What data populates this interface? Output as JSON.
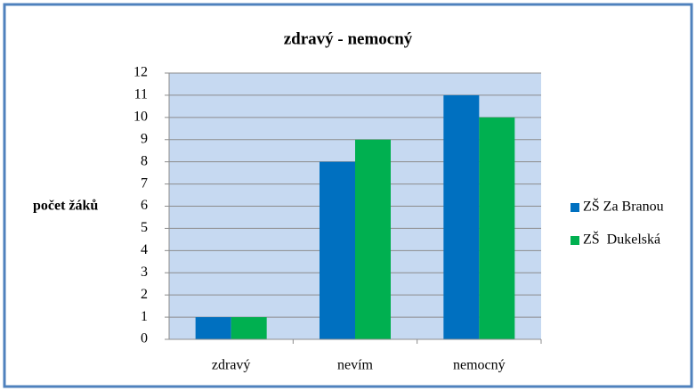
{
  "chart_data": {
    "type": "bar",
    "title": "zdravý - nemocný",
    "y_label": "počet žáků",
    "categories": [
      "zdravý",
      "nevím",
      "nemocný"
    ],
    "series": [
      {
        "name": "ZŠ Za Branou",
        "color": "#0070c0",
        "values": [
          1,
          8,
          11
        ]
      },
      {
        "name": "ZŠ  Dukelská",
        "color": "#00b050",
        "values": [
          1,
          9,
          10
        ]
      }
    ],
    "ylim": [
      0,
      12
    ],
    "yticks": [
      0,
      1,
      2,
      3,
      4,
      5,
      6,
      7,
      8,
      9,
      10,
      11,
      12
    ],
    "grid": true,
    "legend": "right"
  }
}
